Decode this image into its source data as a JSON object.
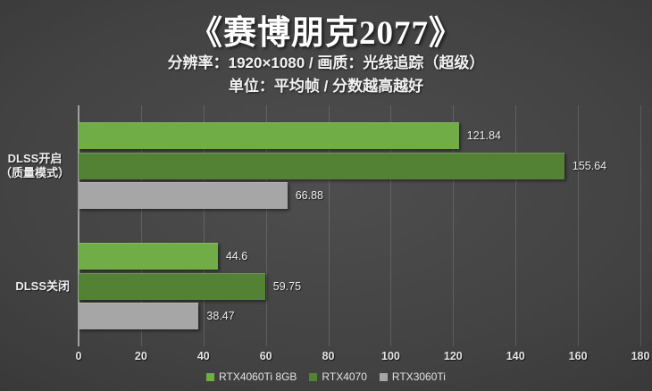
{
  "title": "《赛博朋克2077》",
  "subtitle1": "分辨率：1920×1080 / 画质：光线追踪（超级）",
  "subtitle2": "单位：平均帧 / 分数越高越好",
  "colors": {
    "background_center": "#4e4e4e",
    "background_edge": "#232323",
    "gridline": "rgba(255,255,255,0.14)",
    "axis_line": "#a0a0a0",
    "text": "#ffffff"
  },
  "chart_data": {
    "type": "bar",
    "orientation": "horizontal",
    "title": "《赛博朋克2077》",
    "subtitle": [
      "分辨率：1920×1080 / 画质：光线追踪（超级）",
      "单位：平均帧 / 分数越高越好"
    ],
    "categories": [
      {
        "id": "dlss-on",
        "label_lines": [
          "DLSS开启",
          "（质量模式）"
        ]
      },
      {
        "id": "dlss-off",
        "label_lines": [
          "DLSS关闭"
        ]
      }
    ],
    "series": [
      {
        "name": "RTX4060Ti 8GB",
        "color": "#70AD47",
        "values": [
          121.84,
          44.6
        ]
      },
      {
        "name": "RTX4070",
        "color": "#548235",
        "values": [
          155.64,
          59.75
        ]
      },
      {
        "name": "RTX3060Ti",
        "color": "#A6A6A6",
        "values": [
          66.88,
          38.47
        ]
      }
    ],
    "value_labels": [
      [
        "121.84",
        "155.64",
        "66.88"
      ],
      [
        "44.6",
        "59.75",
        "38.47"
      ]
    ],
    "xlim": [
      0,
      180
    ],
    "xticks": [
      0,
      20,
      40,
      60,
      80,
      100,
      120,
      140,
      160,
      180
    ],
    "xlabel": "",
    "ylabel": "",
    "grid": true,
    "legend_position": "bottom"
  }
}
